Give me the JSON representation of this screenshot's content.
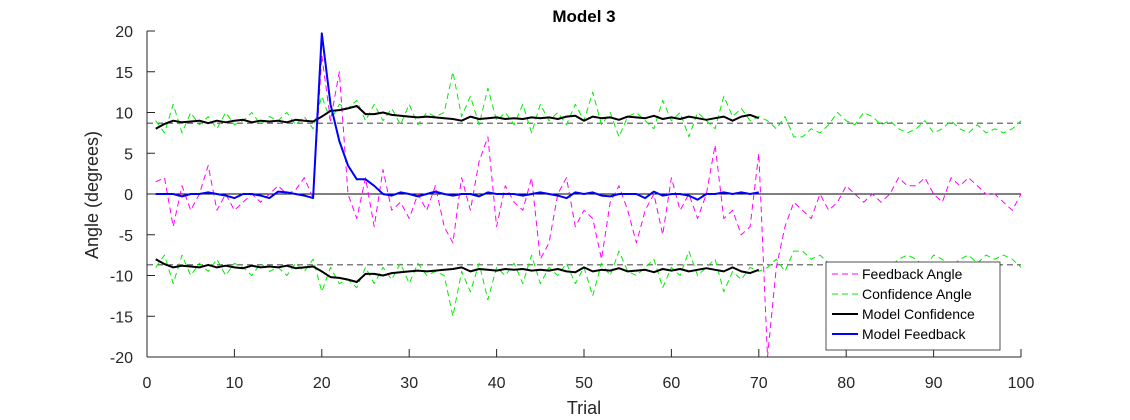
{
  "chart_data": {
    "type": "line",
    "title": "Model 3",
    "xlabel": "Trial",
    "ylabel": "Angle (degrees)",
    "xlim": [
      0,
      100
    ],
    "ylim": [
      -20,
      20
    ],
    "xticks": [
      0,
      10,
      20,
      30,
      40,
      50,
      60,
      70,
      80,
      90,
      100
    ],
    "yticks": [
      -20,
      -15,
      -10,
      -5,
      0,
      5,
      10,
      15,
      20
    ],
    "grid": false,
    "legend_position": "bottom-right",
    "reference_lines": [
      {
        "y": 0,
        "style": "solid",
        "color": "#000000"
      },
      {
        "y": 8.7,
        "style": "dashed",
        "color": "#000000"
      },
      {
        "y": -8.7,
        "style": "dashed",
        "color": "#000000"
      }
    ],
    "series": [
      {
        "name": "Feedback Angle",
        "color": "#ff00ff",
        "style": "dashed",
        "width": 1,
        "x": [
          1,
          2,
          3,
          4,
          5,
          6,
          7,
          8,
          9,
          10,
          11,
          12,
          13,
          14,
          15,
          16,
          17,
          18,
          19,
          20,
          21,
          22,
          23,
          24,
          25,
          26,
          27,
          28,
          29,
          30,
          31,
          32,
          33,
          34,
          35,
          36,
          37,
          38,
          39,
          40,
          41,
          42,
          43,
          44,
          45,
          46,
          47,
          48,
          49,
          50,
          51,
          52,
          53,
          54,
          55,
          56,
          57,
          58,
          59,
          60,
          61,
          62,
          63,
          64,
          65,
          66,
          67,
          68,
          69,
          70,
          71,
          72,
          73,
          74,
          75,
          76,
          77,
          78,
          79,
          80,
          81,
          82,
          83,
          84,
          85,
          86,
          87,
          88,
          89,
          90,
          91,
          92,
          93,
          94,
          95,
          96,
          97,
          98,
          99,
          100
        ],
        "values": [
          1.5,
          2,
          -4,
          1,
          -2,
          0,
          3.5,
          -2,
          0,
          -2,
          -1,
          0,
          -1,
          0,
          1,
          0,
          0.5,
          2,
          -0.5,
          17,
          9,
          15,
          0,
          -3,
          2,
          -4,
          3,
          -2,
          -1,
          -3,
          0,
          -2,
          1,
          -4,
          -6,
          2,
          -2,
          4,
          7,
          -4,
          1,
          -1,
          -2,
          2,
          -8,
          -6,
          0,
          2,
          -4,
          -2,
          -3,
          -8,
          -1,
          1,
          -2,
          -6,
          -2,
          0,
          -5,
          2,
          -2,
          0,
          -3,
          0,
          6,
          -3,
          -2,
          -5,
          -4,
          5,
          -20,
          -9,
          -4,
          -1,
          -2,
          -3,
          0,
          -2,
          -1,
          1,
          0,
          -1,
          0,
          -1,
          0,
          2,
          1,
          1,
          2,
          0,
          -1,
          2,
          1,
          2,
          1,
          0,
          0,
          -1,
          -2,
          0
        ]
      },
      {
        "name": "Confidence Angle",
        "color": "#00ee00",
        "style": "dashed",
        "width": 1,
        "x": [
          1,
          2,
          3,
          4,
          5,
          6,
          7,
          8,
          9,
          10,
          11,
          12,
          13,
          14,
          15,
          16,
          17,
          18,
          19,
          20,
          21,
          22,
          23,
          24,
          25,
          26,
          27,
          28,
          29,
          30,
          31,
          32,
          33,
          34,
          35,
          36,
          37,
          38,
          39,
          40,
          41,
          42,
          43,
          44,
          45,
          46,
          47,
          48,
          49,
          50,
          51,
          52,
          53,
          54,
          55,
          56,
          57,
          58,
          59,
          60,
          61,
          62,
          63,
          64,
          65,
          66,
          67,
          68,
          69,
          70,
          71,
          72,
          73,
          74,
          75,
          76,
          77,
          78,
          79,
          80,
          81,
          82,
          83,
          84,
          85,
          86,
          87,
          88,
          89,
          90,
          91,
          92,
          93,
          94,
          95,
          96,
          97,
          98,
          99,
          100
        ],
        "values": [
          9,
          7.5,
          11,
          7.5,
          10,
          8.5,
          9.5,
          8,
          10,
          8.5,
          9,
          10,
          8.5,
          9.5,
          9,
          10,
          8.5,
          9.5,
          8,
          12,
          9,
          11,
          10.5,
          11.5,
          9,
          11,
          9,
          10.5,
          8.5,
          11,
          8.5,
          10,
          9.5,
          10,
          15,
          9.5,
          12,
          8.5,
          13,
          9,
          10,
          8.5,
          11,
          7.5,
          11,
          9,
          10,
          8.5,
          11,
          9,
          12.5,
          8.5,
          10,
          7,
          9.5,
          10,
          9,
          8,
          11.5,
          9,
          10,
          7,
          10,
          9,
          8,
          12,
          9.5,
          10.5,
          9,
          9.5,
          9,
          8,
          9.5,
          7,
          7,
          8,
          7.5,
          8.5,
          10,
          9,
          8.5,
          10,
          9.5,
          8.5,
          9,
          8,
          7.5,
          8,
          9,
          7.5,
          8,
          9,
          8,
          7.5,
          8.5,
          7.5,
          8,
          7.5,
          8,
          9
        ]
      },
      {
        "name": "Model Confidence",
        "color": "#000000",
        "style": "solid",
        "width": 2,
        "x": [
          1,
          2,
          3,
          4,
          5,
          6,
          7,
          8,
          9,
          10,
          11,
          12,
          13,
          14,
          15,
          16,
          17,
          18,
          19,
          20,
          21,
          22,
          23,
          24,
          25,
          26,
          27,
          28,
          29,
          30,
          31,
          32,
          33,
          34,
          35,
          36,
          37,
          38,
          39,
          40,
          41,
          42,
          43,
          44,
          45,
          46,
          47,
          48,
          49,
          50,
          51,
          52,
          53,
          54,
          55,
          56,
          57,
          58,
          59,
          60,
          61,
          62,
          63,
          64,
          65,
          66,
          67,
          68,
          69,
          70
        ],
        "values": [
          8,
          8.6,
          9,
          8.8,
          8.9,
          9,
          8.7,
          9,
          8.8,
          9,
          9.1,
          8.8,
          9,
          8.9,
          9,
          8.8,
          9.1,
          9,
          8.9,
          9.5,
          10.2,
          10.3,
          10.5,
          10.8,
          9.8,
          9.8,
          10,
          9.7,
          9.6,
          9.5,
          9.4,
          9.5,
          9.4,
          9.3,
          9.2,
          9,
          9.5,
          9.2,
          9.3,
          9.4,
          9.2,
          9.3,
          9.2,
          9.4,
          9.3,
          9.4,
          9.2,
          9.5,
          9.6,
          9,
          9.5,
          9.3,
          9.4,
          9.1,
          9.5,
          9.4,
          9.3,
          9.6,
          9.2,
          9.4,
          9.2,
          9.5,
          9.3,
          9.1,
          9.3,
          9.5,
          9,
          9.5,
          9.7,
          9.3
        ]
      },
      {
        "name": "Model Feedback",
        "color": "#0000ff",
        "style": "solid",
        "width": 2,
        "x": [
          1,
          2,
          3,
          4,
          5,
          6,
          7,
          8,
          9,
          10,
          11,
          12,
          13,
          14,
          15,
          16,
          17,
          18,
          19,
          20,
          21,
          22,
          23,
          24,
          25,
          26,
          27,
          28,
          29,
          30,
          31,
          32,
          33,
          34,
          35,
          36,
          37,
          38,
          39,
          40,
          41,
          42,
          43,
          44,
          45,
          46,
          47,
          48,
          49,
          50,
          51,
          52,
          53,
          54,
          55,
          56,
          57,
          58,
          59,
          60,
          61,
          62,
          63,
          64,
          65,
          66,
          67,
          68,
          69,
          70
        ],
        "values": [
          0,
          0,
          0,
          -0.3,
          0,
          0,
          0.2,
          0,
          -0.2,
          -0.5,
          0,
          0,
          -0.2,
          -0.5,
          0.3,
          0.2,
          0,
          -0.2,
          -0.5,
          19.7,
          11,
          6.5,
          3.5,
          1.8,
          1.8,
          1,
          0,
          -0.2,
          0.2,
          0,
          -0.3,
          0,
          0.3,
          0,
          -0.2,
          0,
          0,
          -0.3,
          0.2,
          0,
          0,
          0,
          -0.2,
          0,
          0.2,
          0,
          -0.2,
          -0.5,
          0.2,
          0,
          0.2,
          -0.2,
          -0.3,
          0,
          0,
          0,
          -0.5,
          0.3,
          -0.2,
          0,
          0,
          -0.2,
          -0.7,
          0,
          0,
          0.2,
          0,
          0.2,
          0,
          0.2
        ]
      },
      {
        "name": "Model Confidence Lower",
        "color": "#000000",
        "style": "solid",
        "width": 2,
        "legend": false,
        "x": [
          1,
          2,
          3,
          4,
          5,
          6,
          7,
          8,
          9,
          10,
          11,
          12,
          13,
          14,
          15,
          16,
          17,
          18,
          19,
          20,
          21,
          22,
          23,
          24,
          25,
          26,
          27,
          28,
          29,
          30,
          31,
          32,
          33,
          34,
          35,
          36,
          37,
          38,
          39,
          40,
          41,
          42,
          43,
          44,
          45,
          46,
          47,
          48,
          49,
          50,
          51,
          52,
          53,
          54,
          55,
          56,
          57,
          58,
          59,
          60,
          61,
          62,
          63,
          64,
          65,
          66,
          67,
          68,
          69,
          70
        ],
        "values": [
          -8,
          -8.6,
          -9,
          -8.8,
          -8.9,
          -9,
          -8.7,
          -9,
          -8.8,
          -9,
          -9.1,
          -8.8,
          -9,
          -8.9,
          -9,
          -8.8,
          -9.1,
          -9,
          -8.9,
          -9.5,
          -10.2,
          -10.3,
          -10.5,
          -10.8,
          -9.8,
          -9.8,
          -10,
          -9.7,
          -9.6,
          -9.5,
          -9.4,
          -9.5,
          -9.4,
          -9.3,
          -9.2,
          -9,
          -9.5,
          -9.2,
          -9.3,
          -9.4,
          -9.2,
          -9.3,
          -9.2,
          -9.4,
          -9.3,
          -9.4,
          -9.2,
          -9.5,
          -9.6,
          -9,
          -9.5,
          -9.3,
          -9.4,
          -9.1,
          -9.5,
          -9.4,
          -9.3,
          -9.6,
          -9.2,
          -9.4,
          -9.2,
          -9.5,
          -9.3,
          -9.1,
          -9.3,
          -9.5,
          -9,
          -9.5,
          -9.7,
          -9.3
        ]
      },
      {
        "name": "Confidence Angle Lower",
        "color": "#00ee00",
        "style": "dashed",
        "width": 1,
        "legend": false,
        "x": [
          1,
          2,
          3,
          4,
          5,
          6,
          7,
          8,
          9,
          10,
          11,
          12,
          13,
          14,
          15,
          16,
          17,
          18,
          19,
          20,
          21,
          22,
          23,
          24,
          25,
          26,
          27,
          28,
          29,
          30,
          31,
          32,
          33,
          34,
          35,
          36,
          37,
          38,
          39,
          40,
          41,
          42,
          43,
          44,
          45,
          46,
          47,
          48,
          49,
          50,
          51,
          52,
          53,
          54,
          55,
          56,
          57,
          58,
          59,
          60,
          61,
          62,
          63,
          64,
          65,
          66,
          67,
          68,
          69,
          70,
          71,
          72,
          73,
          74,
          75,
          76,
          77,
          78,
          79,
          80,
          81,
          82,
          83,
          84,
          85,
          86,
          87,
          88,
          89,
          90,
          91,
          92,
          93,
          94,
          95,
          96,
          97,
          98,
          99,
          100
        ],
        "values": [
          -9,
          -7.5,
          -11,
          -7.5,
          -10,
          -8.5,
          -9.5,
          -8,
          -10,
          -8.5,
          -9,
          -10,
          -8.5,
          -9.5,
          -9,
          -10,
          -8.5,
          -9.5,
          -8,
          -12,
          -9,
          -11,
          -10.5,
          -11.5,
          -9,
          -11,
          -9,
          -10.5,
          -8.5,
          -11,
          -8.5,
          -10,
          -9.5,
          -10,
          -15,
          -9.5,
          -12,
          -8.5,
          -13,
          -9,
          -10,
          -8.5,
          -11,
          -7.5,
          -11,
          -9,
          -10,
          -8.5,
          -11,
          -9,
          -12.5,
          -8.5,
          -10,
          -7,
          -9.5,
          -10,
          -9,
          -8,
          -11.5,
          -9,
          -10,
          -7,
          -10,
          -9,
          -8,
          -12,
          -9.5,
          -10.5,
          -9,
          -9.5,
          -9,
          -8,
          -9.5,
          -7,
          -7,
          -8,
          -7.5,
          -8.5,
          -10,
          -9,
          -8.5,
          -10,
          -9.5,
          -8.5,
          -9,
          -8,
          -7.5,
          -8,
          -9,
          -7.5,
          -8,
          -9,
          -8,
          -7.5,
          -8.5,
          -7.5,
          -8,
          -7.5,
          -8,
          -9
        ]
      }
    ]
  }
}
